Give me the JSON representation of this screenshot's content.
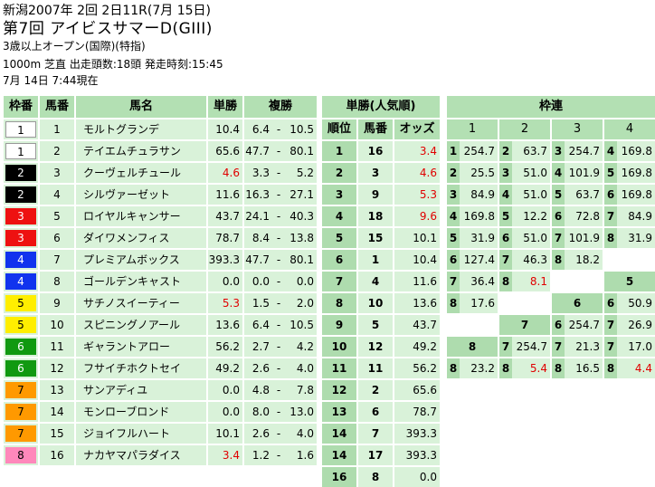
{
  "header": {
    "line1": "新潟2007年 2回 2日11R(7月 15日)",
    "race_title": "第7回  アイビスサマーD(GIII)",
    "conditions": "3歳以上オープン(国際)(特指)",
    "course_info": "1000m 芝直 出走頭数:18頭 発走時刻:15:45",
    "timestamp": "7月 14日 7:44現在"
  },
  "main_table": {
    "headers": [
      "枠番",
      "馬番",
      "馬名",
      "単勝",
      "複勝"
    ],
    "rows": [
      {
        "waku": "1",
        "umaban": "1",
        "name": "モルトグランデ",
        "win": "10.4",
        "pmin": "6.4",
        "pmax": "10.5",
        "red": false
      },
      {
        "waku": "1",
        "umaban": "2",
        "name": "テイエムチュラサン",
        "win": "65.6",
        "pmin": "47.7",
        "pmax": "80.1",
        "red": false
      },
      {
        "waku": "2",
        "umaban": "3",
        "name": "クーヴェルチュール",
        "win": "4.6",
        "pmin": "3.3",
        "pmax": "5.2",
        "red": true
      },
      {
        "waku": "2",
        "umaban": "4",
        "name": "シルヴァーゼット",
        "win": "11.6",
        "pmin": "16.3",
        "pmax": "27.1",
        "red": false
      },
      {
        "waku": "3",
        "umaban": "5",
        "name": "ロイヤルキャンサー",
        "win": "43.7",
        "pmin": "24.1",
        "pmax": "40.3",
        "red": false
      },
      {
        "waku": "3",
        "umaban": "6",
        "name": "ダイワメンフィス",
        "win": "78.7",
        "pmin": "8.4",
        "pmax": "13.8",
        "red": false
      },
      {
        "waku": "4",
        "umaban": "7",
        "name": "プレミアムボックス",
        "win": "393.3",
        "pmin": "47.7",
        "pmax": "80.1",
        "red": false
      },
      {
        "waku": "4",
        "umaban": "8",
        "name": "ゴールデンキャスト",
        "win": "0.0",
        "pmin": "0.0",
        "pmax": "0.0",
        "red": false
      },
      {
        "waku": "5",
        "umaban": "9",
        "name": "サチノスイーティー",
        "win": "5.3",
        "pmin": "1.5",
        "pmax": "2.0",
        "red": true
      },
      {
        "waku": "5",
        "umaban": "10",
        "name": "スピニングノアール",
        "win": "13.6",
        "pmin": "6.4",
        "pmax": "10.5",
        "red": false
      },
      {
        "waku": "6",
        "umaban": "11",
        "name": "ギャラントアロー",
        "win": "56.2",
        "pmin": "2.7",
        "pmax": "4.2",
        "red": false
      },
      {
        "waku": "6",
        "umaban": "12",
        "name": "フサイチホクトセイ",
        "win": "49.2",
        "pmin": "2.6",
        "pmax": "4.0",
        "red": false
      },
      {
        "waku": "7",
        "umaban": "13",
        "name": "サンアディユ",
        "win": "0.0",
        "pmin": "4.8",
        "pmax": "7.8",
        "red": false
      },
      {
        "waku": "7",
        "umaban": "14",
        "name": "モンローブロンド",
        "win": "0.0",
        "pmin": "8.0",
        "pmax": "13.0",
        "red": false
      },
      {
        "waku": "7",
        "umaban": "15",
        "name": "ジョイフルハート",
        "win": "10.1",
        "pmin": "2.6",
        "pmax": "4.0",
        "red": false
      },
      {
        "waku": "8",
        "umaban": "16",
        "name": "ナカヤマパラダイス",
        "win": "3.4",
        "pmin": "1.2",
        "pmax": "1.6",
        "red": true
      }
    ]
  },
  "waku_colors": {
    "1": {
      "bg": "#ffffff",
      "fg": "#000000"
    },
    "2": {
      "bg": "#000000",
      "fg": "#ffffff"
    },
    "3": {
      "bg": "#ee1111",
      "fg": "#ffffff"
    },
    "4": {
      "bg": "#1133ee",
      "fg": "#ffffff"
    },
    "5": {
      "bg": "#ffee00",
      "fg": "#000000"
    },
    "6": {
      "bg": "#119911",
      "fg": "#ffffff"
    },
    "7": {
      "bg": "#ff9900",
      "fg": "#000000"
    },
    "8": {
      "bg": "#ff88bb",
      "fg": "#000000"
    }
  },
  "popularity_table": {
    "title": "単勝(人気順)",
    "headers": [
      "順位",
      "馬番",
      "オッズ"
    ],
    "rows": [
      {
        "rank": "1",
        "umaban": "16",
        "odds": "3.4",
        "red": true
      },
      {
        "rank": "2",
        "umaban": "3",
        "odds": "4.6",
        "red": true
      },
      {
        "rank": "3",
        "umaban": "9",
        "odds": "5.3",
        "red": true
      },
      {
        "rank": "4",
        "umaban": "18",
        "odds": "9.6",
        "red": true
      },
      {
        "rank": "5",
        "umaban": "15",
        "odds": "10.1",
        "red": false
      },
      {
        "rank": "6",
        "umaban": "1",
        "odds": "10.4",
        "red": false
      },
      {
        "rank": "7",
        "umaban": "4",
        "odds": "11.6",
        "red": false
      },
      {
        "rank": "8",
        "umaban": "10",
        "odds": "13.6",
        "red": false
      },
      {
        "rank": "9",
        "umaban": "5",
        "odds": "43.7",
        "red": false
      },
      {
        "rank": "10",
        "umaban": "12",
        "odds": "49.2",
        "red": false
      },
      {
        "rank": "11",
        "umaban": "11",
        "odds": "56.2",
        "red": false
      },
      {
        "rank": "12",
        "umaban": "2",
        "odds": "65.6",
        "red": false
      },
      {
        "rank": "13",
        "umaban": "6",
        "odds": "78.7",
        "red": false
      },
      {
        "rank": "14",
        "umaban": "7",
        "odds": "393.3",
        "red": false
      },
      {
        "rank": "14",
        "umaban": "17",
        "odds": "393.3",
        "red": false
      },
      {
        "rank": "16",
        "umaban": "8",
        "odds": "0.0",
        "red": false
      }
    ]
  },
  "bracket_table": {
    "title": "枠連",
    "columns": [
      "1",
      "2",
      "3",
      "4"
    ],
    "rows": [
      {
        "cells": [
          {
            "n": "1",
            "v": "254.7"
          },
          {
            "n": "2",
            "v": "63.7"
          },
          {
            "n": "3",
            "v": "254.7"
          },
          {
            "n": "4",
            "v": "169.8"
          }
        ]
      },
      {
        "cells": [
          {
            "n": "2",
            "v": "25.5"
          },
          {
            "n": "3",
            "v": "51.0"
          },
          {
            "n": "4",
            "v": "101.9"
          },
          {
            "n": "5",
            "v": "169.8"
          }
        ]
      },
      {
        "cells": [
          {
            "n": "3",
            "v": "84.9"
          },
          {
            "n": "4",
            "v": "51.0"
          },
          {
            "n": "5",
            "v": "63.7"
          },
          {
            "n": "6",
            "v": "169.8"
          }
        ]
      },
      {
        "cells": [
          {
            "n": "4",
            "v": "169.8"
          },
          {
            "n": "5",
            "v": "12.2"
          },
          {
            "n": "6",
            "v": "72.8"
          },
          {
            "n": "7",
            "v": "84.9"
          }
        ]
      },
      {
        "cells": [
          {
            "n": "5",
            "v": "31.9"
          },
          {
            "n": "6",
            "v": "51.0"
          },
          {
            "n": "7",
            "v": "101.9"
          },
          {
            "n": "8",
            "v": "31.9"
          }
        ]
      },
      {
        "cells": [
          {
            "n": "6",
            "v": "127.4"
          },
          {
            "n": "7",
            "v": "46.3"
          },
          {
            "n": "8",
            "v": "18.2"
          }
        ]
      },
      {
        "cells": [
          {
            "n": "7",
            "v": "36.4"
          },
          {
            "n": "8",
            "v": "8.1",
            "red": true
          }
        ],
        "head4": "5"
      },
      {
        "cells": [
          {
            "n": "8",
            "v": "17.6"
          }
        ],
        "head3": "6",
        "c4": {
          "n": "6",
          "v": "50.9"
        }
      },
      {
        "head2": "7",
        "c3": {
          "n": "6",
          "v": "254.7"
        },
        "c4": {
          "n": "7",
          "v": "26.9"
        }
      },
      {
        "head1": "8",
        "c2": {
          "n": "7",
          "v": "254.7"
        },
        "c3": {
          "n": "7",
          "v": "21.3"
        },
        "c4": {
          "n": "7",
          "v": "17.0"
        }
      },
      {
        "c1": {
          "n": "8",
          "v": "23.2"
        },
        "c2": {
          "n": "8",
          "v": "5.4",
          "red": true
        },
        "c3": {
          "n": "8",
          "v": "16.5"
        },
        "c4": {
          "n": "8",
          "v": "4.4",
          "red": true
        }
      }
    ]
  }
}
